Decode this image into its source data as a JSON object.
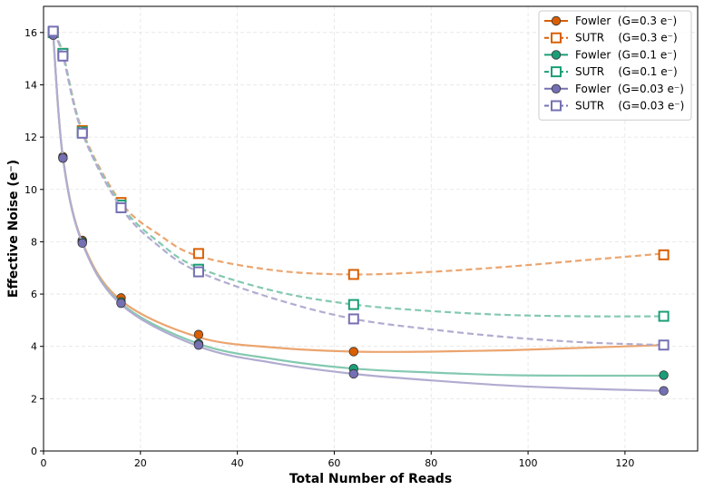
{
  "chart_data": {
    "type": "line",
    "title": "",
    "xlabel": "Total Number of Reads",
    "ylabel": "Effective Noise (e⁻)",
    "xlim": [
      0,
      135
    ],
    "ylim": [
      0,
      17
    ],
    "xticks": [
      0,
      20,
      40,
      60,
      80,
      100,
      120
    ],
    "yticks": [
      0,
      2,
      4,
      6,
      8,
      10,
      12,
      14,
      16
    ],
    "grid": true,
    "legend_position": "top-right",
    "series": [
      {
        "name": "Fowler  (G=0.3 e⁻)",
        "style": "solid",
        "marker": "circle",
        "color": "#d95f02",
        "line_color": "#eba56f",
        "markers_x": [
          2,
          4,
          8,
          16,
          32,
          64,
          128
        ],
        "markers_y": [
          15.9,
          11.25,
          8.05,
          5.85,
          4.45,
          3.8,
          4.05
        ],
        "curve_x": [
          2,
          4,
          8,
          16,
          32,
          48,
          64,
          80,
          96,
          112,
          128
        ],
        "curve_y": [
          15.9,
          11.25,
          8.0,
          5.75,
          4.35,
          3.95,
          3.8,
          3.8,
          3.85,
          3.95,
          4.05
        ]
      },
      {
        "name": "SUTR    (G=0.3 e⁻)",
        "style": "dashed",
        "marker": "square",
        "color": "#d95f02",
        "line_color": "#eba56f",
        "markers_x": [
          2,
          4,
          8,
          16,
          32,
          64,
          128
        ],
        "markers_y": [
          16.0,
          15.2,
          12.25,
          9.5,
          7.55,
          6.75,
          7.5
        ],
        "curve_x": [
          2,
          4,
          8,
          16,
          24,
          32,
          48,
          64,
          80,
          96,
          112,
          128
        ],
        "curve_y": [
          16.0,
          15.2,
          12.25,
          9.5,
          8.25,
          7.45,
          6.9,
          6.75,
          6.85,
          7.05,
          7.3,
          7.55
        ]
      },
      {
        "name": "Fowler  (G=0.1 e⁻)",
        "style": "solid",
        "marker": "circle",
        "color": "#1b9e77",
        "line_color": "#84c9b0",
        "markers_x": [
          2,
          4,
          8,
          16,
          32,
          64,
          128
        ],
        "markers_y": [
          15.9,
          11.2,
          8.0,
          5.7,
          4.1,
          3.15,
          2.9
        ],
        "curve_x": [
          2,
          4,
          8,
          16,
          32,
          48,
          64,
          80,
          96,
          112,
          128
        ],
        "curve_y": [
          15.9,
          11.2,
          7.95,
          5.65,
          4.1,
          3.5,
          3.15,
          3.0,
          2.9,
          2.88,
          2.88
        ]
      },
      {
        "name": "SUTR    (G=0.1 e⁻)",
        "style": "dashed",
        "marker": "square",
        "color": "#1b9e77",
        "line_color": "#84c9b0",
        "markers_x": [
          2,
          4,
          8,
          16,
          32,
          64,
          128
        ],
        "markers_y": [
          16.0,
          15.2,
          12.2,
          9.4,
          6.95,
          5.6,
          5.15
        ],
        "curve_x": [
          2,
          4,
          8,
          16,
          24,
          32,
          48,
          64,
          80,
          96,
          112,
          128
        ],
        "curve_y": [
          16.0,
          15.2,
          12.2,
          9.4,
          7.95,
          7.0,
          6.1,
          5.6,
          5.35,
          5.2,
          5.15,
          5.15
        ]
      },
      {
        "name": "Fowler  (G=0.03 e⁻)",
        "style": "solid",
        "marker": "circle",
        "color": "#7570b3",
        "line_color": "#b1acd1",
        "markers_x": [
          2,
          4,
          8,
          16,
          32,
          64,
          128
        ],
        "markers_y": [
          15.9,
          11.2,
          7.95,
          5.65,
          4.05,
          2.95,
          2.3
        ],
        "curve_x": [
          2,
          4,
          8,
          16,
          32,
          48,
          64,
          80,
          96,
          112,
          128
        ],
        "curve_y": [
          15.9,
          11.2,
          7.95,
          5.6,
          4.0,
          3.35,
          2.95,
          2.7,
          2.5,
          2.38,
          2.3
        ]
      },
      {
        "name": "SUTR    (G=0.03 e⁻)",
        "style": "dashed",
        "marker": "square",
        "color": "#7570b3",
        "line_color": "#b1acd1",
        "markers_x": [
          2,
          4,
          8,
          16,
          32,
          64,
          128
        ],
        "markers_y": [
          16.05,
          15.1,
          12.15,
          9.3,
          6.85,
          5.05,
          4.05
        ],
        "curve_x": [
          2,
          4,
          8,
          16,
          24,
          32,
          48,
          64,
          80,
          96,
          112,
          128
        ],
        "curve_y": [
          16.05,
          15.1,
          12.15,
          9.3,
          7.8,
          6.85,
          5.8,
          5.05,
          4.65,
          4.35,
          4.15,
          4.05
        ]
      }
    ]
  }
}
